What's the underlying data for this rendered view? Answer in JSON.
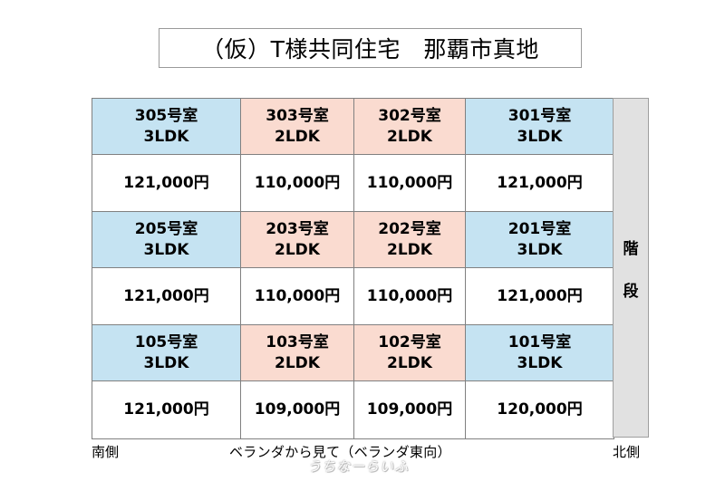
{
  "title": "（仮）T様共同住宅　那覇市真地",
  "floors": [
    {
      "units": [
        {
          "room": "305号室",
          "type": "3LDK",
          "price": "121,000円",
          "color": "#c5e3f2"
        },
        {
          "room": "303号室",
          "type": "2LDK",
          "price": "110,000円",
          "color": "#fadbd0"
        },
        {
          "room": "302号室",
          "type": "2LDK",
          "price": "110,000円",
          "color": "#fadbd0"
        },
        {
          "room": "301号室",
          "type": "3LDK",
          "price": "121,000円",
          "color": "#c5e3f2"
        }
      ]
    },
    {
      "units": [
        {
          "room": "205号室",
          "type": "3LDK",
          "price": "121,000円",
          "color": "#c5e3f2"
        },
        {
          "room": "203号室",
          "type": "2LDK",
          "price": "110,000円",
          "color": "#fadbd0"
        },
        {
          "room": "202号室",
          "type": "2LDK",
          "price": "110,000円",
          "color": "#fadbd0"
        },
        {
          "room": "201号室",
          "type": "3LDK",
          "price": "121,000円",
          "color": "#c5e3f2"
        }
      ]
    },
    {
      "units": [
        {
          "room": "105号室",
          "type": "3LDK",
          "price": "121,000円",
          "color": "#c5e3f2"
        },
        {
          "room": "103号室",
          "type": "2LDK",
          "price": "109,000円",
          "color": "#fadbd0"
        },
        {
          "room": "102号室",
          "type": "2LDK",
          "price": "109,000円",
          "color": "#fadbd0"
        },
        {
          "room": "101号室",
          "type": "3LDK",
          "price": "120,000円",
          "color": "#c5e3f2"
        }
      ]
    }
  ],
  "stairs": [
    "階",
    "段"
  ],
  "footer": {
    "south": "南側",
    "caption": "ベランダから見て（ベランダ東向）",
    "north": "北側"
  },
  "watermark": "うちなーらいふ"
}
